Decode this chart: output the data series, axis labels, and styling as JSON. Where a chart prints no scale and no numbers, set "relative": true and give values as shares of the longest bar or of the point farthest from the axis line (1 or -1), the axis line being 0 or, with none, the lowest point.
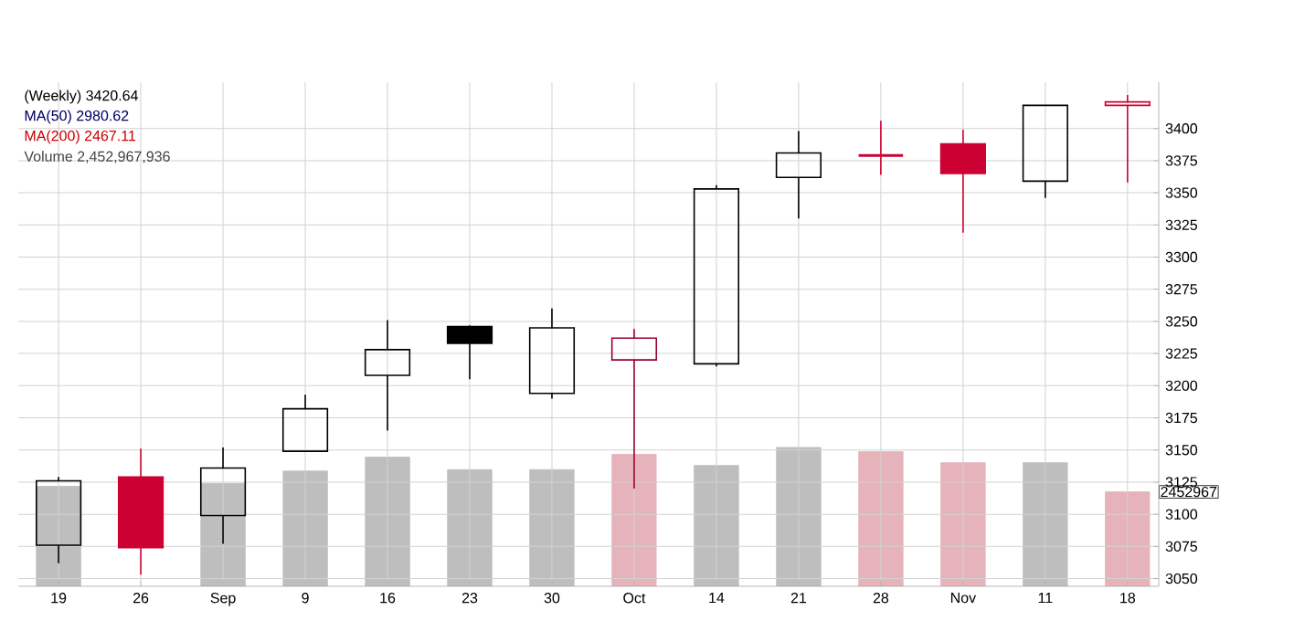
{
  "chart_data": [
    {
      "type": "candlestick",
      "categories": [
        "19",
        "26",
        "Sep",
        "9",
        "16",
        "23",
        "30",
        "Oct",
        "14",
        "21",
        "28",
        "Nov",
        "11",
        "18"
      ],
      "ohlc": [
        [
          3076,
          3129,
          3062,
          3126
        ],
        [
          3129,
          3151,
          3053,
          3074
        ],
        [
          3099,
          3152,
          3077,
          3136
        ],
        [
          3149,
          3193,
          3149,
          3182
        ],
        [
          3208,
          3251,
          3165,
          3228
        ],
        [
          3246,
          3247,
          3205,
          3233
        ],
        [
          3194,
          3260,
          3190,
          3245
        ],
        [
          3220,
          3244,
          3120,
          3237
        ],
        [
          3217,
          3356,
          3215,
          3353
        ],
        [
          3362,
          3398,
          3330,
          3381
        ],
        [
          3379,
          3406,
          3364,
          3379
        ],
        [
          3388,
          3399,
          3319,
          3365
        ],
        [
          3359,
          3418,
          3346,
          3418
        ],
        [
          3418,
          3426,
          3358,
          3420.64
        ]
      ],
      "colors": [
        "#000000",
        "#cc0033",
        "#000000",
        "#000000",
        "#000000",
        "#000000",
        "#000000",
        "#990033",
        "#000000",
        "#000000",
        "#cc0033",
        "#cc0033",
        "#000000",
        "#cc0033"
      ],
      "ylim": [
        3044,
        3436
      ],
      "yticks": [
        3050,
        3075,
        3100,
        3125,
        3150,
        3175,
        3200,
        3225,
        3250,
        3275,
        3300,
        3325,
        3350,
        3375,
        3400
      ],
      "grid": true,
      "annotations": [
        "(Weekly) 3420.64",
        "MA(50) 2980.62",
        "MA(200) 2467.11",
        "Volume 2,452,967,936"
      ]
    },
    {
      "type": "bar",
      "relative": true,
      "categories": [
        null,
        null,
        null,
        null,
        null,
        null,
        null,
        null,
        null,
        null,
        null,
        null,
        null,
        null
      ],
      "values": [
        0.72,
        null,
        0.74,
        0.83,
        0.93,
        0.84,
        0.84,
        0.95,
        0.87,
        1,
        0.97,
        0.89,
        0.89,
        0.68
      ],
      "colors": [
        "#bebebe",
        "#e6b3bb",
        "#bebebe",
        "#bebebe",
        "#bebebe",
        "#bebebe",
        "#bebebe",
        "#e6b3bb",
        "#bebebe",
        "#bebebe",
        "#e6b3bb",
        "#e6b3bb",
        "#bebebe",
        "#e6b3bb"
      ],
      "annotations": [
        "2452967"
      ]
    }
  ]
}
